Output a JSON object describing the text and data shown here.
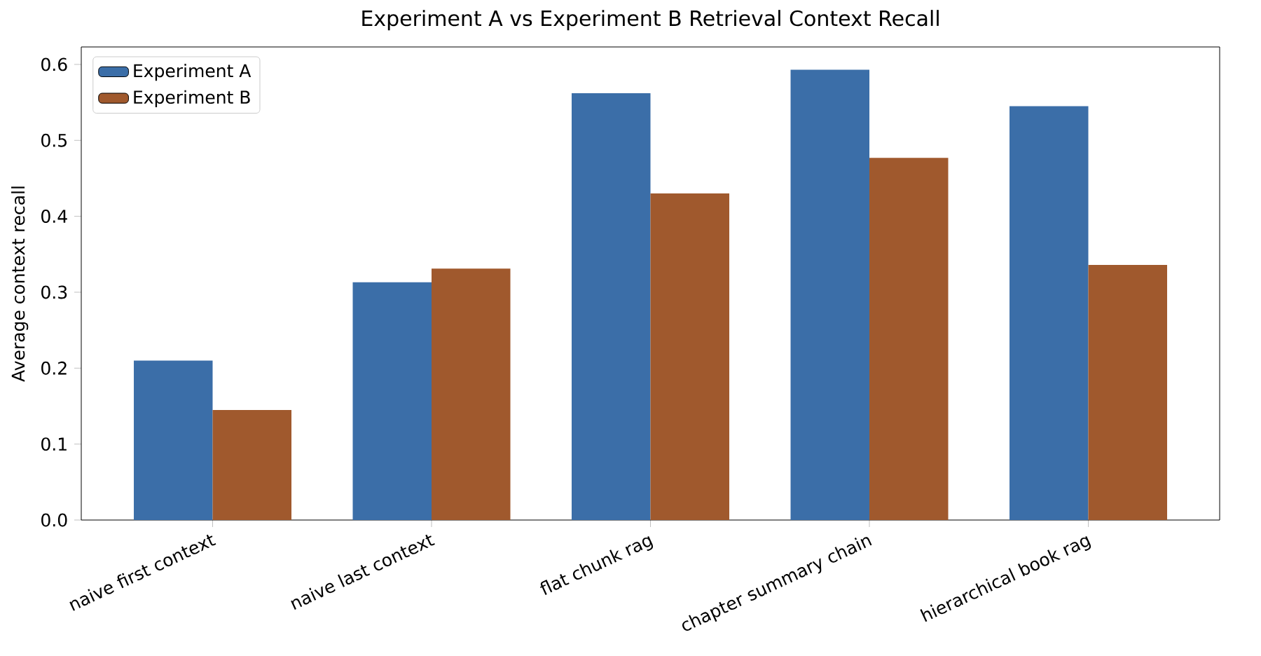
{
  "chart_data": {
    "type": "bar",
    "title": "Experiment A vs Experiment B Retrieval Context Recall",
    "ylabel": "Average context recall",
    "categories": [
      "naive first context",
      "naive last context",
      "flat chunk rag",
      "chapter summary chain",
      "hierarchical book rag"
    ],
    "series": [
      {
        "name": "Experiment A",
        "color": "#3b6ea8",
        "values": [
          0.21,
          0.313,
          0.562,
          0.593,
          0.545
        ]
      },
      {
        "name": "Experiment B",
        "color": "#a0592d",
        "values": [
          0.145,
          0.331,
          0.43,
          0.477,
          0.336
        ]
      }
    ],
    "ylim": [
      0,
      0.623
    ],
    "yticks": [
      {
        "value": 0,
        "label": "0.0"
      },
      {
        "value": 0.1,
        "label": "0.1"
      },
      {
        "value": 0.2,
        "label": "0.2"
      },
      {
        "value": 0.3,
        "label": "0.3"
      },
      {
        "value": 0.4,
        "label": "0.4"
      },
      {
        "value": 0.5,
        "label": "0.5"
      },
      {
        "value": 0.6,
        "label": "0.6"
      }
    ],
    "grid": false,
    "legend": "top left"
  }
}
